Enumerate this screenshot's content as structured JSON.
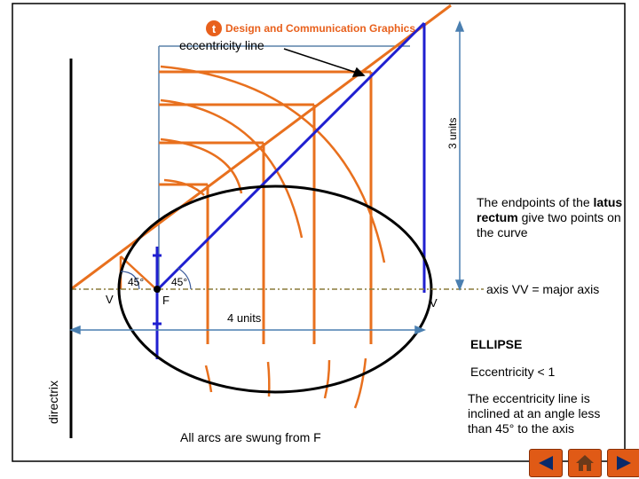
{
  "brand": {
    "logo_letter": "t",
    "title": "Design and Communication Graphics"
  },
  "labels": {
    "eccentricity_line": "eccentricity line",
    "three_units": "3 units",
    "four_units": "4 units",
    "angle_left": "45°",
    "angle_right": "45°",
    "vertex_left": "V",
    "focus": "F",
    "vertex_right": "V",
    "axis": "axis VV = major axis",
    "directrix": "directrix",
    "arcs_note": "All arcs are swung from F"
  },
  "notes": {
    "latus_prefix": "The endpoints of the ",
    "latus_bold": "latus rectum",
    "latus_suffix": " give two points on the curve",
    "ellipse_title": "ELLIPSE",
    "eccentricity": "Eccentricity < 1",
    "inclination": "The eccentricity line is inclined at an angle less than 45° to the axis"
  },
  "nav": {
    "prev_icon": "triangle-left-icon",
    "home_icon": "home-icon",
    "next_icon": "triangle-right-icon"
  },
  "colors": {
    "construction": "#e8701e",
    "eccentricity_line": "#1f1fd0",
    "ellipse": "#000000",
    "dimension": "#4a7fb0",
    "accent": "#e05a16"
  }
}
